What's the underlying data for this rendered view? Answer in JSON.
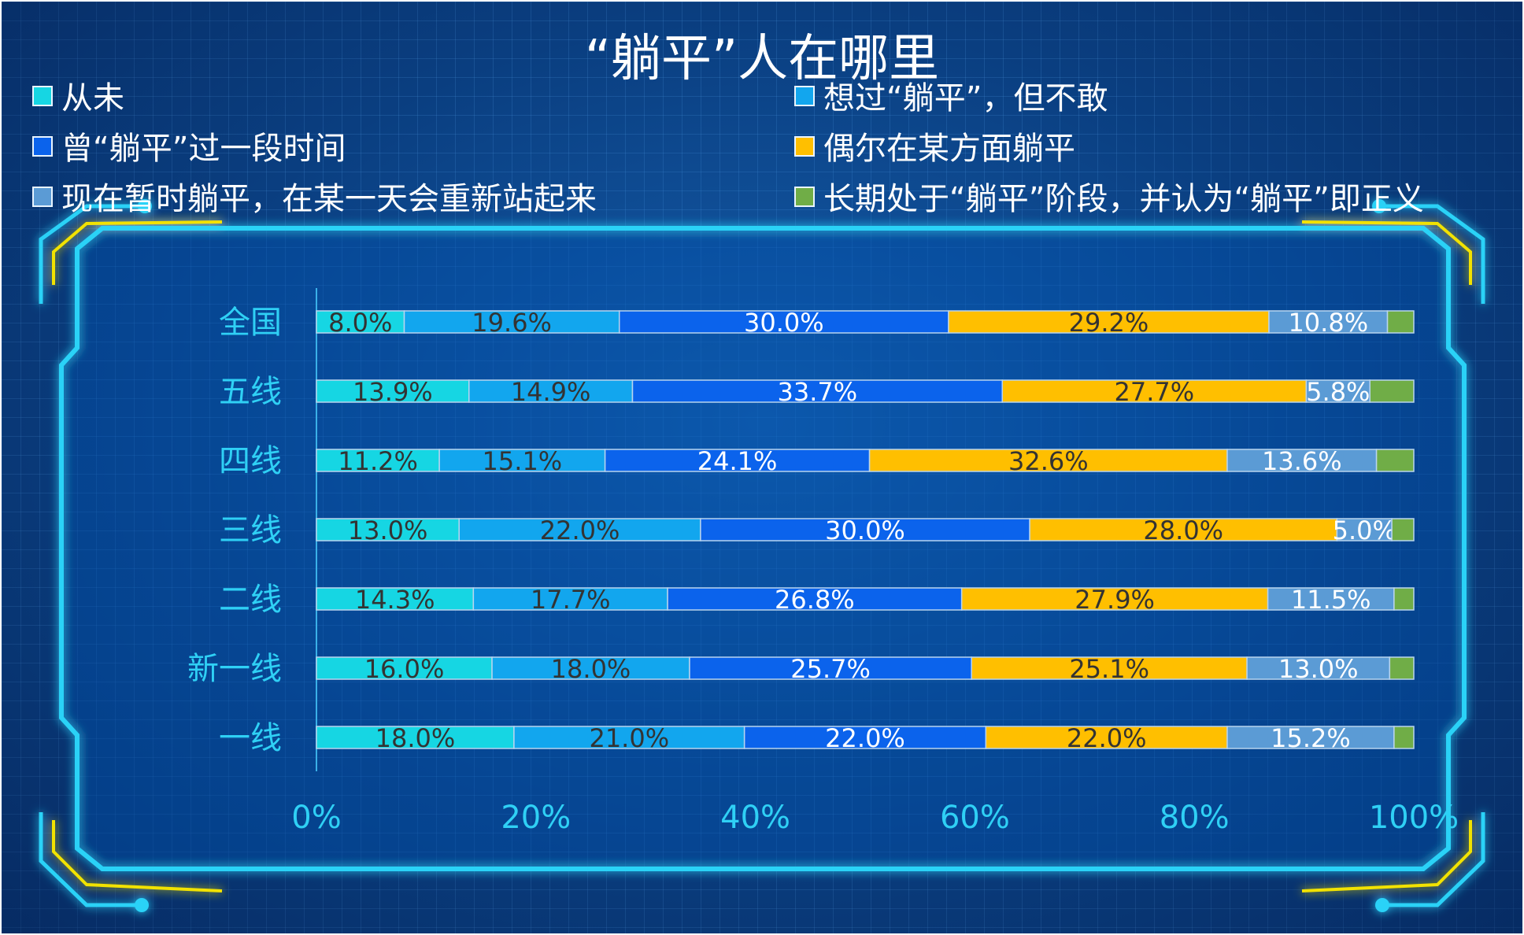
{
  "chart_data": {
    "type": "bar",
    "orientation": "horizontal",
    "stacked": "percent",
    "title": "“躺平”人在哪里",
    "xlabel": "",
    "ylabel": "",
    "xlim": [
      0,
      100
    ],
    "x_ticks": [
      "0%",
      "20%",
      "40%",
      "60%",
      "80%",
      "100%"
    ],
    "legend_position": "top",
    "grid": false,
    "categories": [
      "全国",
      "五线",
      "四线",
      "三线",
      "二线",
      "新一线",
      "一线"
    ],
    "series": [
      {
        "name": "从未",
        "color": "#16d6e3",
        "label_color": "#333333",
        "values": [
          8.0,
          13.9,
          11.2,
          13.0,
          14.3,
          16.0,
          18.0
        ],
        "labels": [
          "8.0%",
          "13.9%",
          "11.2%",
          "13.0%",
          "14.3%",
          "16.0%",
          "18.0%"
        ]
      },
      {
        "name": "想过“躺平”，但不敢",
        "color": "#12a6ee",
        "label_color": "#333333",
        "values": [
          19.6,
          14.9,
          15.1,
          22.0,
          17.7,
          18.0,
          21.0
        ],
        "labels": [
          "19.6%",
          "14.9%",
          "15.1%",
          "22.0%",
          "17.7%",
          "18.0%",
          "21.0%"
        ]
      },
      {
        "name": "曾“躺平”过一段时间",
        "color": "#0b63ec",
        "label_color": "#ffffff",
        "values": [
          30.0,
          33.7,
          24.1,
          30.0,
          26.8,
          25.7,
          22.0
        ],
        "labels": [
          "30.0%",
          "33.7%",
          "24.1%",
          "30.0%",
          "26.8%",
          "25.7%",
          "22.0%"
        ]
      },
      {
        "name": "偶尔在某方面躺平",
        "color": "#ffbf00",
        "label_color": "#333333",
        "values": [
          29.2,
          27.7,
          32.6,
          28.0,
          27.9,
          25.1,
          22.0
        ],
        "labels": [
          "29.2%",
          "27.7%",
          "32.6%",
          "28.0%",
          "27.9%",
          "25.1%",
          "22.0%"
        ]
      },
      {
        "name": "现在暂时躺平，在某一天会重新站起来",
        "color": "#5b9bd5",
        "label_color": "#ffffff",
        "values": [
          10.8,
          5.8,
          13.6,
          5.0,
          11.5,
          13.0,
          15.2
        ],
        "labels": [
          "10.8%",
          "5.8%",
          "13.6%",
          "5.0%",
          "11.5%",
          "13.0%",
          "15.2%"
        ]
      },
      {
        "name": "长期处于“躺平”阶段，并认为“躺平”即正义",
        "color": "#70ad47",
        "label_color": "#ffffff",
        "values": [
          2.4,
          4.0,
          3.4,
          2.0,
          1.8,
          2.2,
          1.8
        ],
        "labels": [
          "",
          "",
          "",
          "",
          "",
          "",
          ""
        ]
      }
    ],
    "legend": [
      {
        "series": 0,
        "col": 0,
        "row": 0
      },
      {
        "series": 1,
        "col": 1,
        "row": 0
      },
      {
        "series": 2,
        "col": 0,
        "row": 1
      },
      {
        "series": 3,
        "col": 1,
        "row": 1
      },
      {
        "series": 4,
        "col": 0,
        "row": 2
      },
      {
        "series": 5,
        "col": 1,
        "row": 2
      }
    ],
    "colors": {
      "frame": "#29d2f7",
      "frame_accent": "#f2e200",
      "axis_text": "#2fd0f5"
    }
  }
}
